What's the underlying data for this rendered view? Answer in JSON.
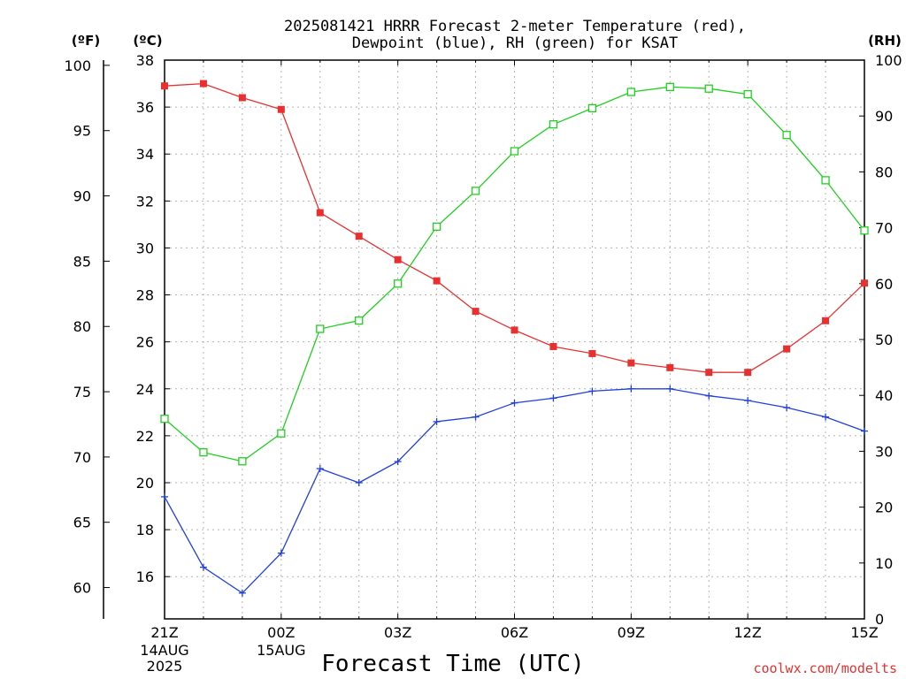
{
  "chart_data": {
    "type": "line",
    "title_line1": "2025081421 HRRR Forecast 2-meter Temperature (red),",
    "title_line2": "Dewpoint (blue), RH (green) for KSAT",
    "left_axis_f": {
      "unit_label": "(ºF)",
      "ticks": [
        "60",
        "65",
        "70",
        "75",
        "80",
        "85",
        "90",
        "95",
        "100"
      ],
      "range": [
        57.6,
        100.4
      ]
    },
    "left_axis_c": {
      "unit_label": "(ºC)",
      "ticks": [
        "16",
        "18",
        "20",
        "22",
        "24",
        "26",
        "28",
        "30",
        "32",
        "34",
        "36",
        "38"
      ],
      "range": [
        14.2,
        38.0
      ]
    },
    "right_axis_rh": {
      "unit_label": "(RH)",
      "ticks": [
        "0",
        "10",
        "20",
        "30",
        "40",
        "50",
        "60",
        "70",
        "80",
        "90",
        "100"
      ],
      "range": [
        0,
        100
      ]
    },
    "x_axis": {
      "label": "Forecast Time (UTC)",
      "range_hours": [
        0,
        18
      ],
      "tick_labels": [
        "21Z",
        "00Z",
        "03Z",
        "06Z",
        "09Z",
        "12Z",
        "15Z"
      ],
      "date_labels": [
        {
          "line1": "14AUG",
          "line2": "2025"
        },
        {
          "line1": "15AUG",
          "line2": ""
        }
      ]
    },
    "x": [
      0,
      1,
      2,
      3,
      4,
      5,
      6,
      7,
      8,
      9,
      10,
      11,
      12,
      13,
      14,
      15,
      16,
      17,
      18
    ],
    "series": [
      {
        "name": "Temperature",
        "color": "#e83030",
        "marker": "filled-square",
        "units": "°C",
        "values": [
          36.9,
          37.0,
          36.4,
          35.9,
          31.5,
          30.5,
          29.5,
          28.6,
          27.3,
          26.5,
          25.8,
          25.5,
          25.1,
          24.9,
          24.7,
          24.7,
          25.7,
          26.9,
          28.5
        ]
      },
      {
        "name": "Dewpoint",
        "color": "#2040e0",
        "marker": "plus",
        "units": "°C",
        "values": [
          19.4,
          16.4,
          15.3,
          17.0,
          20.6,
          20.0,
          20.9,
          22.6,
          22.8,
          23.4,
          23.6,
          23.9,
          24.0,
          24.0,
          23.7,
          23.5,
          23.2,
          22.8,
          22.2
        ]
      },
      {
        "name": "RH",
        "color": "#20d020",
        "marker": "open-square",
        "units": "%",
        "values": [
          35.8,
          29.8,
          28.2,
          33.2,
          51.9,
          53.4,
          60.0,
          70.2,
          76.6,
          83.7,
          88.5,
          91.4,
          94.3,
          95.2,
          94.9,
          93.9,
          86.6,
          78.5,
          69.5
        ]
      }
    ],
    "grid": true
  },
  "credit": "coolwx.com/modelts"
}
